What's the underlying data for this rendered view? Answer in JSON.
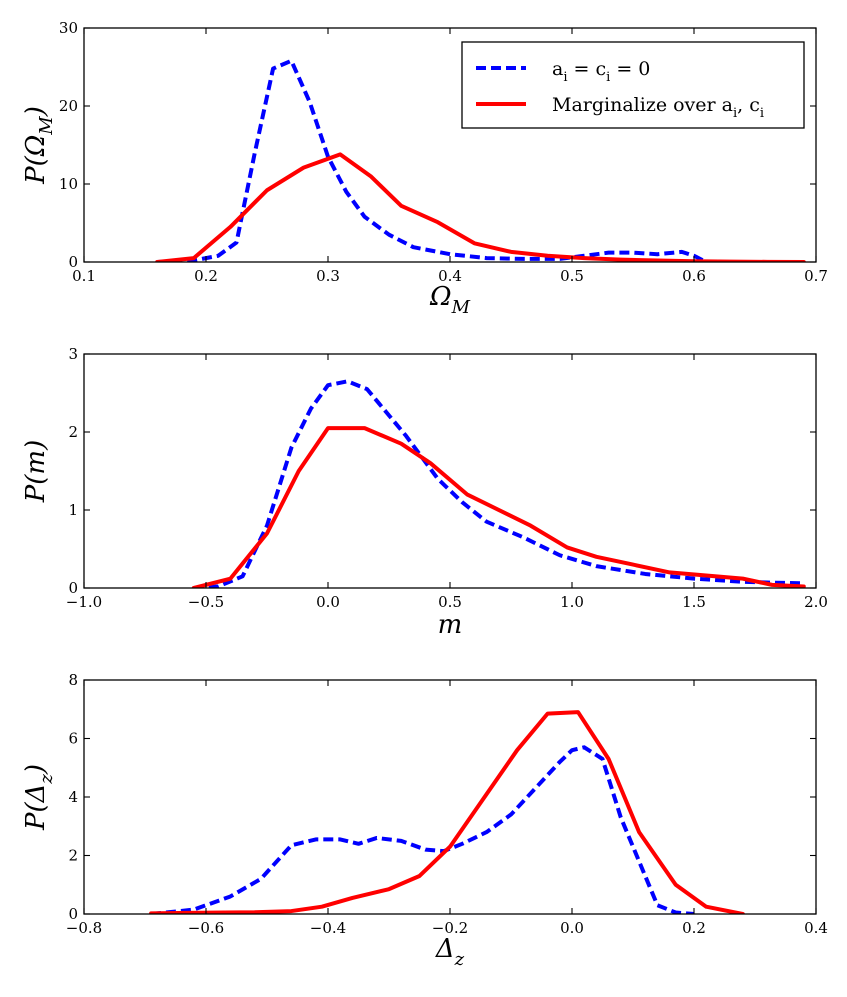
{
  "colors": {
    "dashed_series": "#0000ff",
    "solid_series": "#ff0000"
  },
  "legend": {
    "items": [
      {
        "label": "a_i = c_i = 0",
        "style": "dashed",
        "color": "#0000ff"
      },
      {
        "label": "Marginalize over a_i, c_i",
        "style": "solid",
        "color": "#ff0000"
      }
    ]
  },
  "chart_data": [
    {
      "type": "line",
      "xlabel": "Ω_M",
      "ylabel": "P(Ω_M)",
      "xlim": [
        0.1,
        0.7
      ],
      "ylim": [
        0,
        30
      ],
      "xticks": [
        "0.1",
        "0.2",
        "0.3",
        "0.4",
        "0.5",
        "0.6",
        "0.7"
      ],
      "yticks": [
        "0",
        "10",
        "20",
        "30"
      ],
      "series": [
        {
          "name": "a_i = c_i = 0",
          "style": "dashed",
          "color": "#0000ff",
          "x": [
            0.16,
            0.19,
            0.21,
            0.225,
            0.24,
            0.255,
            0.27,
            0.285,
            0.3,
            0.315,
            0.33,
            0.35,
            0.37,
            0.4,
            0.43,
            0.46,
            0.49,
            0.51,
            0.53,
            0.55,
            0.57,
            0.59,
            0.6,
            0.61
          ],
          "values": [
            0,
            0.2,
            0.8,
            2.5,
            14.0,
            24.8,
            25.8,
            20.5,
            13.5,
            9.0,
            5.8,
            3.5,
            1.9,
            1.0,
            0.5,
            0.4,
            0.4,
            0.8,
            1.2,
            1.2,
            1.0,
            1.3,
            0.8,
            0
          ]
        },
        {
          "name": "Marginalize over a_i, c_i",
          "style": "solid",
          "color": "#ff0000",
          "x": [
            0.16,
            0.19,
            0.22,
            0.25,
            0.28,
            0.31,
            0.335,
            0.36,
            0.39,
            0.42,
            0.45,
            0.48,
            0.51,
            0.54,
            0.57,
            0.6,
            0.63,
            0.66,
            0.69
          ],
          "values": [
            0,
            0.5,
            4.5,
            9.2,
            12.1,
            13.8,
            11.0,
            7.2,
            5.1,
            2.4,
            1.3,
            0.8,
            0.5,
            0.3,
            0.2,
            0.1,
            0.05,
            0.02,
            0
          ]
        }
      ]
    },
    {
      "type": "line",
      "xlabel": "m",
      "ylabel": "P(m)",
      "xlim": [
        -1.0,
        2.0
      ],
      "ylim": [
        0,
        3
      ],
      "xticks": [
        "−1.0",
        "−0.5",
        "0.0",
        "0.5",
        "1.0",
        "1.5",
        "2.0"
      ],
      "yticks": [
        "0",
        "1",
        "2",
        "3"
      ],
      "series": [
        {
          "name": "a_i = c_i = 0",
          "style": "dashed",
          "color": "#0000ff",
          "x": [
            -0.55,
            -0.45,
            -0.35,
            -0.25,
            -0.15,
            -0.07,
            0.0,
            0.08,
            0.16,
            0.24,
            0.32,
            0.45,
            0.55,
            0.65,
            0.8,
            0.95,
            1.1,
            1.3,
            1.5,
            1.7,
            1.8,
            1.95
          ],
          "values": [
            0,
            0.02,
            0.15,
            0.8,
            1.8,
            2.3,
            2.6,
            2.65,
            2.55,
            2.25,
            1.95,
            1.4,
            1.1,
            0.85,
            0.65,
            0.42,
            0.28,
            0.18,
            0.12,
            0.08,
            0.07,
            0.06
          ]
        },
        {
          "name": "Marginalize over a_i, c_i",
          "style": "solid",
          "color": "#ff0000",
          "x": [
            -0.55,
            -0.4,
            -0.25,
            -0.12,
            0.0,
            0.15,
            0.3,
            0.42,
            0.57,
            0.83,
            0.98,
            1.1,
            1.25,
            1.4,
            1.55,
            1.7,
            1.82,
            1.95
          ],
          "values": [
            0,
            0.12,
            0.7,
            1.5,
            2.05,
            2.05,
            1.85,
            1.6,
            1.2,
            0.8,
            0.52,
            0.4,
            0.3,
            0.2,
            0.16,
            0.12,
            0.04,
            0.02
          ]
        }
      ]
    },
    {
      "type": "line",
      "xlabel": "Δ_z",
      "ylabel": "P(Δ_z)",
      "xlim": [
        -0.8,
        0.4
      ],
      "ylim": [
        0,
        8
      ],
      "xticks": [
        "−0.8",
        "−0.6",
        "−0.4",
        "−0.2",
        "0.0",
        "0.2",
        "0.4"
      ],
      "yticks": [
        "0",
        "2",
        "4",
        "6",
        "8"
      ],
      "series": [
        {
          "name": "a_i = c_i = 0",
          "style": "dashed",
          "color": "#0000ff",
          "x": [
            -0.69,
            -0.62,
            -0.56,
            -0.51,
            -0.46,
            -0.42,
            -0.38,
            -0.35,
            -0.32,
            -0.28,
            -0.24,
            -0.21,
            -0.18,
            -0.14,
            -0.1,
            -0.06,
            -0.02,
            0.0,
            0.02,
            0.05,
            0.08,
            0.11,
            0.14,
            0.17,
            0.2
          ],
          "values": [
            0,
            0.15,
            0.6,
            1.2,
            2.35,
            2.55,
            2.55,
            2.4,
            2.6,
            2.5,
            2.2,
            2.15,
            2.4,
            2.8,
            3.4,
            4.3,
            5.2,
            5.6,
            5.7,
            5.3,
            3.3,
            1.8,
            0.3,
            0.05,
            0
          ]
        },
        {
          "name": "Marginalize over a_i, c_i",
          "style": "solid",
          "color": "#ff0000",
          "x": [
            -0.69,
            -0.63,
            -0.57,
            -0.52,
            -0.46,
            -0.41,
            -0.36,
            -0.3,
            -0.25,
            -0.2,
            -0.15,
            -0.09,
            -0.04,
            0.01,
            0.06,
            0.11,
            0.17,
            0.22,
            0.28
          ],
          "values": [
            0.02,
            0.04,
            0.05,
            0.06,
            0.1,
            0.25,
            0.55,
            0.85,
            1.3,
            2.3,
            3.8,
            5.6,
            6.85,
            6.9,
            5.3,
            2.8,
            1.0,
            0.25,
            0
          ]
        }
      ]
    }
  ]
}
